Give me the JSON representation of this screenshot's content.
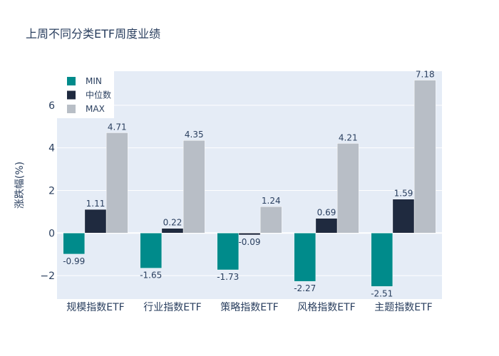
{
  "chart_data": {
    "type": "bar",
    "title": "上周不同分类ETF周度业绩",
    "xlabel": "",
    "ylabel": "涨跌幅(%)",
    "categories": [
      "规模指数ETF",
      "行业指数ETF",
      "策略指数ETF",
      "风格指数ETF",
      "主题指数ETF"
    ],
    "series": [
      {
        "name": "MIN",
        "color": "#008b8b",
        "values": [
          -0.99,
          -1.65,
          -1.73,
          -2.27,
          -2.51
        ]
      },
      {
        "name": "中位数",
        "color": "#1f2a3f",
        "values": [
          1.11,
          0.22,
          -0.09,
          0.69,
          1.59
        ]
      },
      {
        "name": "MAX",
        "color": "#b8bec6",
        "values": [
          4.71,
          4.35,
          1.24,
          4.21,
          7.18
        ]
      }
    ],
    "ylim": [
      -3.1,
      7.6
    ],
    "yticks": [
      -2,
      0,
      2,
      4,
      6
    ],
    "ytick_labels": [
      "−2",
      "0",
      "2",
      "4",
      "6"
    ],
    "grid": true,
    "legend_position": "top-left",
    "plot_bg": "#e5ecf6"
  }
}
